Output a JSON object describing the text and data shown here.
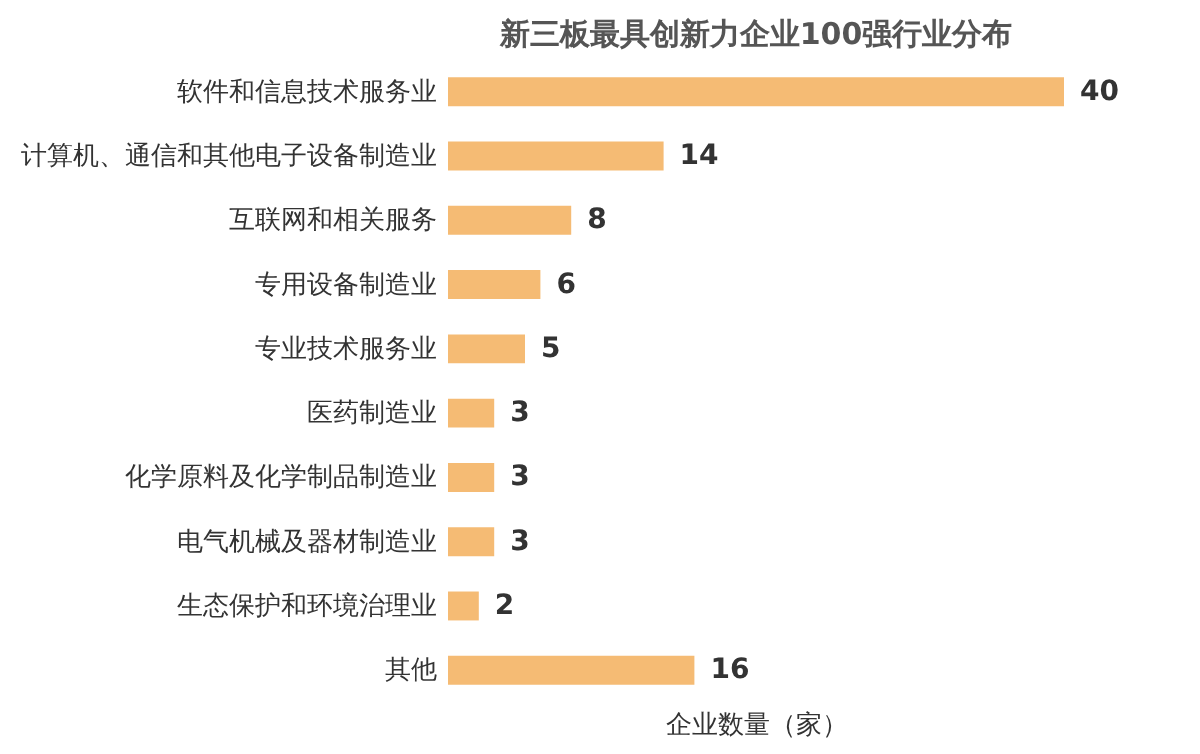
{
  "chart_data": {
    "type": "bar",
    "orientation": "horizontal",
    "title": "新三板最具创新力企业100强行业分布",
    "xlabel": "企业数量（家）",
    "categories": [
      "软件和信息技术服务业",
      "计算机、通信和其他电子设备制造业",
      "互联网和相关服务",
      "专用设备制造业",
      "专业技术服务业",
      "医药制造业",
      "化学原料及化学制品制造业",
      "电气机械及器材制造业",
      "生态保护和环境治理业",
      "其他"
    ],
    "values": [
      40,
      14,
      8,
      6,
      5,
      3,
      3,
      3,
      2,
      16
    ],
    "color": "#f5bb74",
    "data_labels": true,
    "grid": false
  }
}
